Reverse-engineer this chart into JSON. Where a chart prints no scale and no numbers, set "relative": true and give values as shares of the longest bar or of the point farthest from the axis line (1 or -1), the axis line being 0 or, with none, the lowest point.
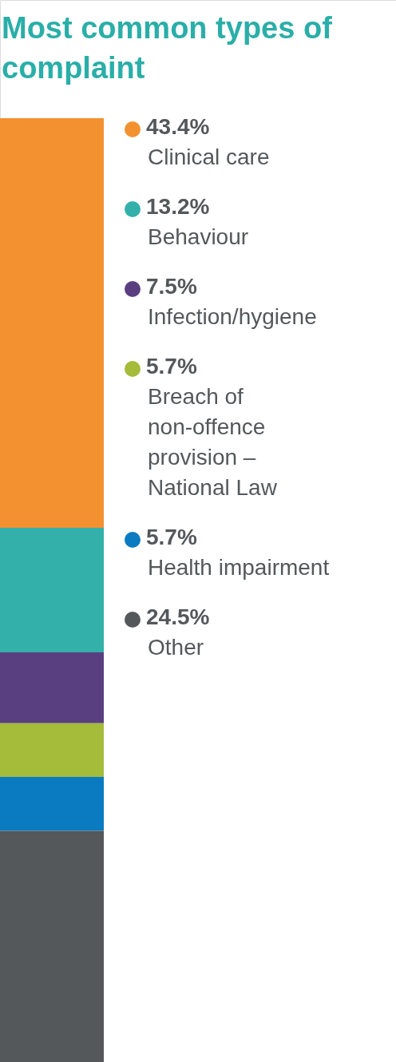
{
  "chart_data": {
    "type": "bar",
    "title": "Most common types of complaint",
    "stacked": true,
    "relative": true,
    "legend": "right",
    "categories": [
      null
    ],
    "series": [
      {
        "name": "43.4%\nClinical care",
        "color": "#f39130",
        "values": [
          0.434
        ]
      },
      {
        "name": "13.2%\nBehaviour",
        "color": "#33b0aa",
        "values": [
          0.132
        ]
      },
      {
        "name": "7.5%\nInfection/hygiene",
        "color": "#5a3f80",
        "values": [
          0.075
        ]
      },
      {
        "name": "5.7%\nBreach of non-offence provision – National Law",
        "color": "#a5bb3a",
        "values": [
          0.057
        ]
      },
      {
        "name": "5.7%\nHealth impairment",
        "color": "#0a7bc1",
        "values": [
          0.057
        ]
      },
      {
        "name": "24.5%\nOther",
        "color": "#54585b",
        "values": [
          0.245
        ]
      }
    ]
  }
}
